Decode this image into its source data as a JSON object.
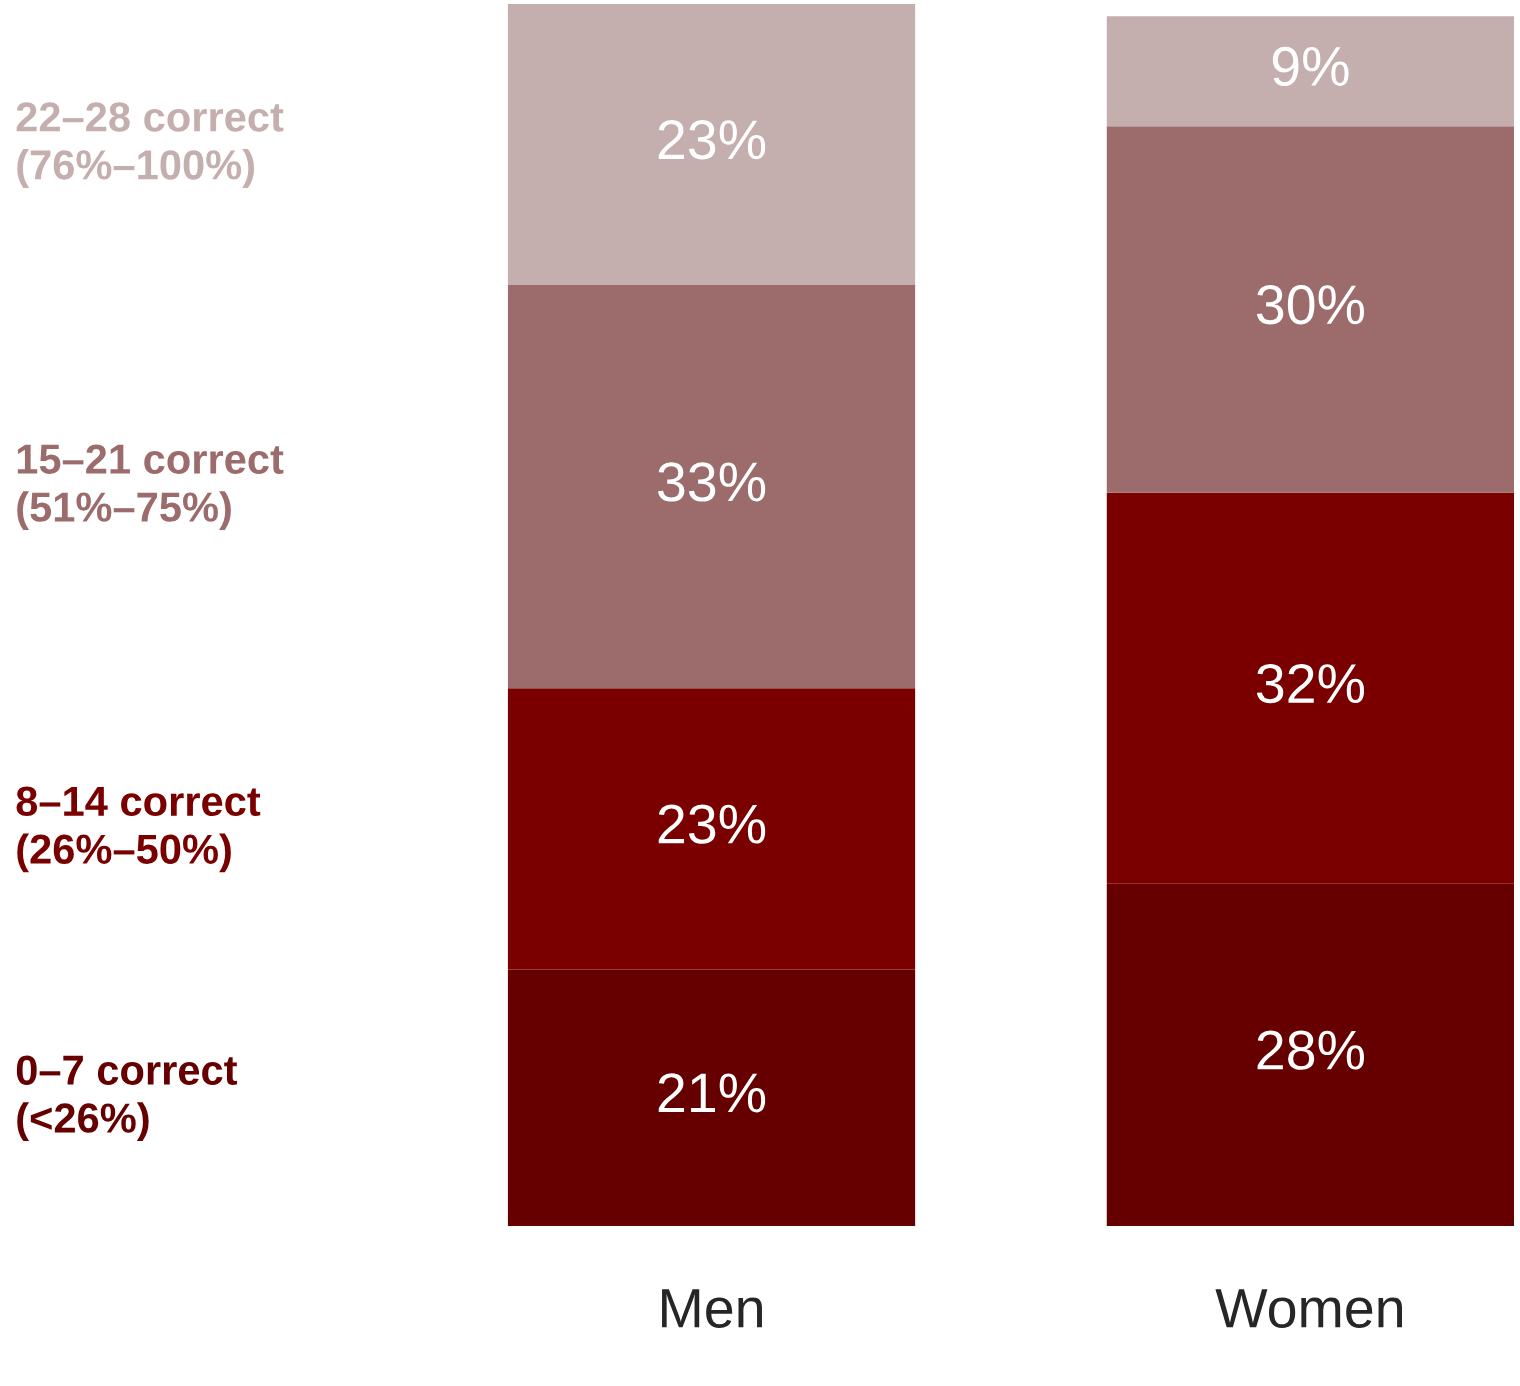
{
  "chart_data": {
    "type": "bar",
    "stacked": true,
    "categories": [
      "Men",
      "Women"
    ],
    "series": [
      {
        "name": "0–7 correct\n(<26%)",
        "color": "#660000",
        "values": [
          21,
          28
        ],
        "value_labels": [
          "21%",
          "28%"
        ]
      },
      {
        "name": "8–14 correct\n(26%–50%)",
        "color": "#7a0000",
        "values": [
          23,
          32
        ],
        "value_labels": [
          "23%",
          "32%"
        ]
      },
      {
        "name": "15–21 correct\n(51%–75%)",
        "color": "#9c6b6b",
        "values": [
          33,
          30
        ],
        "value_labels": [
          "33%",
          "30%"
        ]
      },
      {
        "name": "22–28 correct\n(76%–100%)",
        "color": "#c5aeae",
        "values": [
          23,
          9
        ],
        "value_labels": [
          "23%",
          "9%"
        ]
      }
    ]
  }
}
